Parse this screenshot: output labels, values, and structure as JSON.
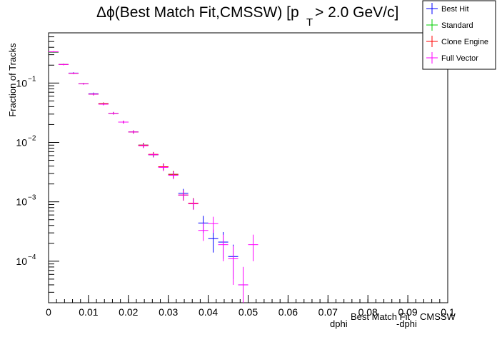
{
  "chart_data": {
    "type": "scatter",
    "title": {
      "prefix": "Δϕ(Best Match Fit,CMSSW) [p",
      "subscript": "T",
      "suffix": " > 2.0 GeV/c]"
    },
    "xlabel": {
      "base1": "dphi",
      "sup1": "Best Match Fit",
      "base2": "-dphi",
      "sup2": "CMSSW"
    },
    "ylabel": "Fraction of Tracks",
    "xlim": [
      0,
      0.1
    ],
    "ylim": [
      2e-05,
      0.7
    ],
    "yscale": "log",
    "x_ticks": [
      "0",
      "0.01",
      "0.02",
      "0.03",
      "0.04",
      "0.05",
      "0.06",
      "0.07",
      "0.08",
      "0.09",
      "0.1"
    ],
    "x_tick_values": [
      0,
      0.01,
      0.02,
      0.03,
      0.04,
      0.05,
      0.06,
      0.07,
      0.08,
      0.09,
      0.1
    ],
    "y_ticks": [
      {
        "value": 0.1,
        "base": "10",
        "exp": "−1"
      },
      {
        "value": 0.01,
        "base": "10",
        "exp": "−2"
      },
      {
        "value": 0.001,
        "base": "10",
        "exp": "−3"
      },
      {
        "value": 0.0001,
        "base": "10",
        "exp": "−4"
      }
    ],
    "bin_width": 0.0025,
    "legend_position": "top-right",
    "series": [
      {
        "name": "Best Hit",
        "color": "#0000ff",
        "points": [
          {
            "x": 0.00125,
            "y": 0.33,
            "e": 0.008
          },
          {
            "x": 0.00375,
            "y": 0.205,
            "e": 0.006
          },
          {
            "x": 0.00625,
            "y": 0.147,
            "e": 0.005
          },
          {
            "x": 0.00875,
            "y": 0.097,
            "e": 0.003
          },
          {
            "x": 0.01125,
            "y": 0.066,
            "e": 0.003
          },
          {
            "x": 0.01375,
            "y": 0.045,
            "e": 0.002
          },
          {
            "x": 0.01625,
            "y": 0.031,
            "e": 0.0015
          },
          {
            "x": 0.01875,
            "y": 0.022,
            "e": 0.0012
          },
          {
            "x": 0.02125,
            "y": 0.015,
            "e": 0.0009
          },
          {
            "x": 0.02375,
            "y": 0.009,
            "e": 0.0008
          },
          {
            "x": 0.02625,
            "y": 0.0062,
            "e": 0.0006
          },
          {
            "x": 0.02875,
            "y": 0.0039,
            "e": 0.0005
          },
          {
            "x": 0.03125,
            "y": 0.0029,
            "e": 0.0004
          },
          {
            "x": 0.03375,
            "y": 0.0014,
            "e": 0.00025
          },
          {
            "x": 0.03625,
            "y": 0.00095,
            "e": 0.0002
          },
          {
            "x": 0.03875,
            "y": 0.00044,
            "e": 0.00014
          },
          {
            "x": 0.04125,
            "y": 0.00024,
            "e": 0.0001
          },
          {
            "x": 0.04375,
            "y": 0.00021,
            "e": 0.0001
          },
          {
            "x": 0.04625,
            "y": 0.00012,
            "e": 7e-05
          },
          {
            "x": 0.04875,
            "y": 4e-05,
            "e": 4e-05
          }
        ]
      },
      {
        "name": "Standard",
        "color": "#00cc00",
        "points": [
          {
            "x": 0.00125,
            "y": 0.33,
            "e": 0.008
          },
          {
            "x": 0.00375,
            "y": 0.205,
            "e": 0.006
          },
          {
            "x": 0.00625,
            "y": 0.146,
            "e": 0.005
          },
          {
            "x": 0.00875,
            "y": 0.097,
            "e": 0.003
          },
          {
            "x": 0.01125,
            "y": 0.065,
            "e": 0.003
          },
          {
            "x": 0.01375,
            "y": 0.045,
            "e": 0.002
          },
          {
            "x": 0.01625,
            "y": 0.031,
            "e": 0.0015
          },
          {
            "x": 0.01875,
            "y": 0.022,
            "e": 0.0012
          },
          {
            "x": 0.02125,
            "y": 0.015,
            "e": 0.0009
          },
          {
            "x": 0.02375,
            "y": 0.009,
            "e": 0.0008
          },
          {
            "x": 0.02625,
            "y": 0.0062,
            "e": 0.0006
          },
          {
            "x": 0.02875,
            "y": 0.0039,
            "e": 0.0005
          },
          {
            "x": 0.03125,
            "y": 0.0029,
            "e": 0.0004
          },
          {
            "x": 0.03375,
            "y": 0.0013,
            "e": 0.00025
          },
          {
            "x": 0.03625,
            "y": 0.00095,
            "e": 0.0002
          }
        ]
      },
      {
        "name": "Clone Engine",
        "color": "#ff0000",
        "points": [
          {
            "x": 0.00125,
            "y": 0.335,
            "e": 0.008
          },
          {
            "x": 0.00375,
            "y": 0.205,
            "e": 0.006
          },
          {
            "x": 0.00625,
            "y": 0.146,
            "e": 0.005
          },
          {
            "x": 0.00875,
            "y": 0.097,
            "e": 0.003
          },
          {
            "x": 0.01125,
            "y": 0.065,
            "e": 0.003
          },
          {
            "x": 0.01375,
            "y": 0.045,
            "e": 0.002
          },
          {
            "x": 0.01625,
            "y": 0.031,
            "e": 0.0015
          },
          {
            "x": 0.01875,
            "y": 0.022,
            "e": 0.0012
          },
          {
            "x": 0.02125,
            "y": 0.015,
            "e": 0.0009
          },
          {
            "x": 0.02375,
            "y": 0.009,
            "e": 0.0008
          },
          {
            "x": 0.02625,
            "y": 0.0063,
            "e": 0.0006
          },
          {
            "x": 0.02875,
            "y": 0.0039,
            "e": 0.0005
          },
          {
            "x": 0.03125,
            "y": 0.0029,
            "e": 0.0004
          },
          {
            "x": 0.03375,
            "y": 0.0013,
            "e": 0.00025
          },
          {
            "x": 0.03625,
            "y": 0.00095,
            "e": 0.0002
          }
        ]
      },
      {
        "name": "Full Vector",
        "color": "#ff00ff",
        "points": [
          {
            "x": 0.00125,
            "y": 0.335,
            "e": 0.008
          },
          {
            "x": 0.00375,
            "y": 0.205,
            "e": 0.006
          },
          {
            "x": 0.00625,
            "y": 0.146,
            "e": 0.005
          },
          {
            "x": 0.00875,
            "y": 0.097,
            "e": 0.003
          },
          {
            "x": 0.01125,
            "y": 0.065,
            "e": 0.003
          },
          {
            "x": 0.01375,
            "y": 0.044,
            "e": 0.002
          },
          {
            "x": 0.01625,
            "y": 0.031,
            "e": 0.0015
          },
          {
            "x": 0.01875,
            "y": 0.022,
            "e": 0.0012
          },
          {
            "x": 0.02125,
            "y": 0.015,
            "e": 0.0009
          },
          {
            "x": 0.02375,
            "y": 0.0088,
            "e": 0.0008
          },
          {
            "x": 0.02625,
            "y": 0.0062,
            "e": 0.0006
          },
          {
            "x": 0.02875,
            "y": 0.0038,
            "e": 0.0005
          },
          {
            "x": 0.03125,
            "y": 0.0028,
            "e": 0.0004
          },
          {
            "x": 0.03375,
            "y": 0.0013,
            "e": 0.00025
          },
          {
            "x": 0.03625,
            "y": 0.00093,
            "e": 0.0002
          },
          {
            "x": 0.03875,
            "y": 0.00033,
            "e": 0.00011
          },
          {
            "x": 0.04125,
            "y": 0.00043,
            "e": 0.00013
          },
          {
            "x": 0.04375,
            "y": 0.00019,
            "e": 9e-05
          },
          {
            "x": 0.04625,
            "y": 0.00011,
            "e": 7e-05
          },
          {
            "x": 0.04875,
            "y": 4e-05,
            "e": 4e-05
          },
          {
            "x": 0.05125,
            "y": 0.00019,
            "e": 9e-05
          }
        ]
      }
    ]
  }
}
